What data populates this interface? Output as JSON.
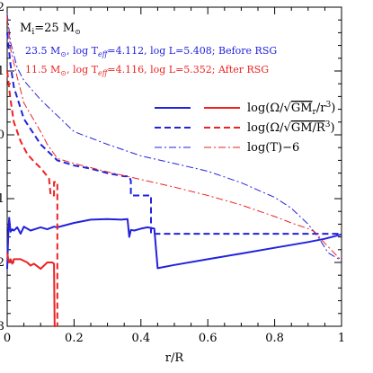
{
  "chart_data": {
    "type": "line",
    "xlabel": "r/R",
    "ylabel": "",
    "xlim": [
      0,
      1
    ],
    "ylim": [
      -3,
      2
    ],
    "xticks": [
      0,
      0.2,
      0.4,
      0.6,
      0.8,
      1
    ],
    "xtick_labels": [
      "0",
      "0.2",
      "0.4",
      "0.6",
      "0.8",
      "1"
    ],
    "yticks": [
      -3,
      -2,
      -1,
      0,
      1,
      2
    ],
    "ytick_labels": [
      "−3",
      "−2",
      "−1",
      "0",
      "1",
      "2"
    ],
    "grid": false,
    "annotations": {
      "mass_label": "M",
      "mass_sub": "i",
      "mass_value": "=25 M",
      "solar_symbol": "⊙",
      "line1": {
        "color": "#2222dd",
        "prefix": "23.5 M",
        "mid1": ", log T",
        "sub": "eff",
        "rest": "=4.112, log L=5.408; Before  RSG"
      },
      "line2": {
        "color": "#ee2222",
        "prefix": "11.5 M",
        "mid1": ", log T",
        "sub": "eff",
        "rest": "=4.116, log L=5.352; After  RSG"
      }
    },
    "legend": {
      "placement": "top-right",
      "entries": [
        {
          "label_pre": "log(Ω/√",
          "label_rad": "GM",
          "label_rad_sub": "r",
          "label_rad_post": "/r",
          "label_sup": "3",
          "label_end": ")",
          "style": "solid"
        },
        {
          "label_pre": "log(Ω/√",
          "label_rad": "GM/R",
          "label_rad_sub": "",
          "label_rad_post": "",
          "label_sup": "3",
          "label_end": ")",
          "style": "dashed"
        },
        {
          "label_text": "log(T)−6",
          "style": "dashdot"
        }
      ]
    },
    "series": [
      {
        "model": "before",
        "quantity": "log(Ω/√GM_r/r³)",
        "color": "#2222dd",
        "style": "solid",
        "x": [
          0,
          0.003,
          0.006,
          0.01,
          0.015,
          0.02,
          0.03,
          0.04,
          0.05,
          0.07,
          0.1,
          0.12,
          0.14,
          0.15,
          0.2,
          0.25,
          0.3,
          0.34,
          0.36,
          0.365,
          0.37,
          0.38,
          0.4,
          0.42,
          0.44,
          0.45,
          0.5,
          0.6,
          0.7,
          0.8,
          0.9,
          0.95,
          1.0
        ],
        "y": [
          -2.1,
          -1.6,
          -1.3,
          -1.52,
          -1.48,
          -1.5,
          -1.45,
          -1.55,
          -1.44,
          -1.5,
          -1.45,
          -1.48,
          -1.44,
          -1.45,
          -1.38,
          -1.33,
          -1.32,
          -1.33,
          -1.32,
          -1.6,
          -1.49,
          -1.5,
          -1.47,
          -1.45,
          -1.47,
          -2.09,
          -2.04,
          -1.95,
          -1.86,
          -1.77,
          -1.68,
          -1.63,
          -1.56
        ]
      },
      {
        "model": "after",
        "quantity": "log(Ω/√GM_r/r³)",
        "color": "#ee2222",
        "style": "solid",
        "x": [
          0,
          0.005,
          0.01,
          0.015,
          0.02,
          0.04,
          0.06,
          0.07,
          0.08,
          0.1,
          0.12,
          0.135,
          0.14,
          0.142,
          0.145
        ],
        "y": [
          -1.85,
          -2.0,
          -1.95,
          -2.02,
          -1.95,
          -1.95,
          -2.0,
          -2.05,
          -2.02,
          -2.1,
          -2.0,
          -2.0,
          -2.02,
          -3.0,
          -3.0
        ]
      },
      {
        "model": "before",
        "quantity": "log(Ω/√GM/R³)",
        "color": "#2222dd",
        "style": "dashed",
        "x": [
          0,
          0.01,
          0.02,
          0.05,
          0.1,
          0.15,
          0.2,
          0.25,
          0.3,
          0.35,
          0.365,
          0.37,
          0.37,
          0.38,
          0.42,
          0.43,
          0.43,
          0.45,
          1.0
        ],
        "y": [
          1.6,
          1.1,
          0.75,
          0.25,
          -0.15,
          -0.4,
          -0.48,
          -0.53,
          -0.6,
          -0.65,
          -0.65,
          -0.72,
          -0.95,
          -0.95,
          -0.95,
          -0.95,
          -1.55,
          -1.55,
          -1.55
        ]
      },
      {
        "model": "after",
        "quantity": "log(Ω/√GM/R³)",
        "color": "#ee2222",
        "style": "dashed",
        "x": [
          0,
          0.01,
          0.02,
          0.04,
          0.06,
          0.08,
          0.1,
          0.12,
          0.125,
          0.13,
          0.14,
          0.14,
          0.15,
          0.15
        ],
        "y": [
          1.0,
          0.55,
          0.2,
          -0.1,
          -0.3,
          -0.42,
          -0.52,
          -0.65,
          -0.68,
          -0.95,
          -0.95,
          -0.74,
          -0.74,
          -3.0
        ]
      },
      {
        "model": "before",
        "quantity": "log(T)−6",
        "color": "#2222dd",
        "style": "dashdot",
        "x": [
          0,
          0.01,
          0.03,
          0.05,
          0.1,
          0.15,
          0.2,
          0.3,
          0.4,
          0.5,
          0.6,
          0.7,
          0.8,
          0.85,
          0.9,
          0.93,
          0.96,
          1.0
        ],
        "y": [
          1.9,
          1.45,
          1.05,
          0.85,
          0.55,
          0.3,
          0.05,
          -0.15,
          -0.33,
          -0.45,
          -0.57,
          -0.75,
          -0.98,
          -1.15,
          -1.4,
          -1.6,
          -1.85,
          -1.97
        ]
      },
      {
        "model": "after",
        "quantity": "log(T)−6",
        "color": "#ee2222",
        "style": "dashdot",
        "x": [
          0,
          0.01,
          0.03,
          0.05,
          0.1,
          0.12,
          0.15,
          0.2,
          0.3,
          0.4,
          0.5,
          0.6,
          0.7,
          0.8,
          0.85,
          0.9,
          0.92,
          0.95,
          1.0
        ],
        "y": [
          1.85,
          1.35,
          0.9,
          0.5,
          0.05,
          -0.15,
          -0.37,
          -0.45,
          -0.58,
          -0.7,
          -0.82,
          -0.95,
          -1.1,
          -1.28,
          -1.38,
          -1.47,
          -1.52,
          -1.7,
          -1.97
        ]
      }
    ]
  }
}
